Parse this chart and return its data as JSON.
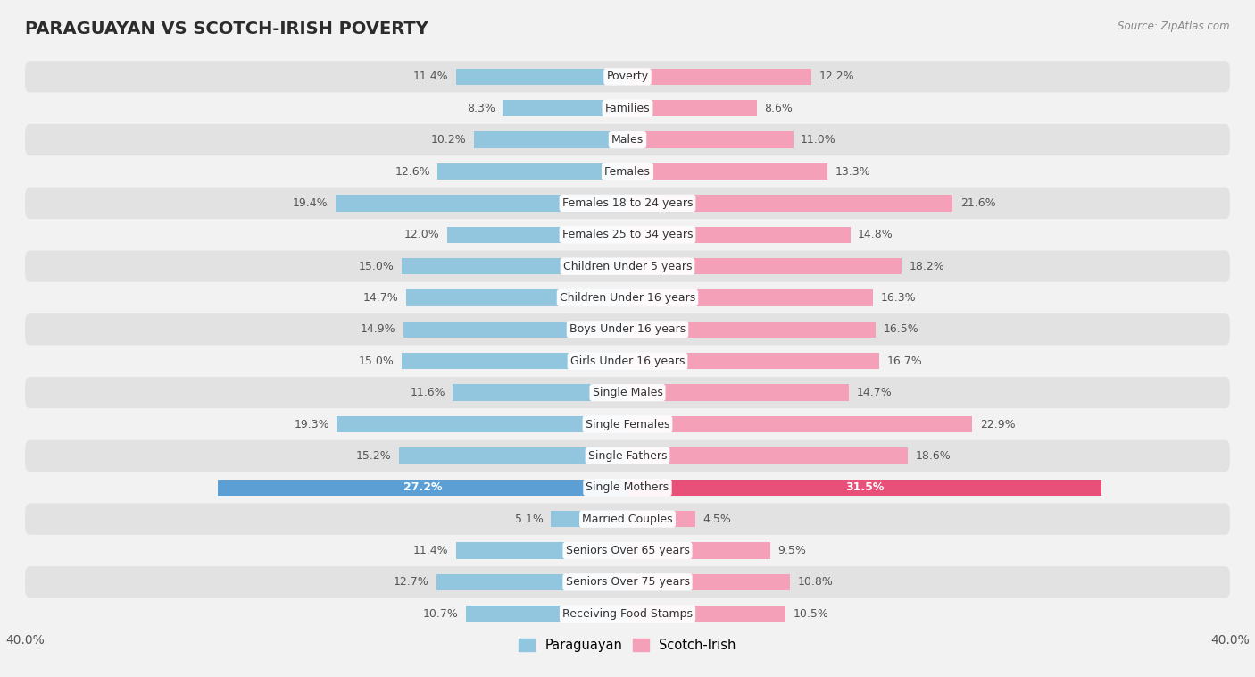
{
  "title": "PARAGUAYAN VS SCOTCH-IRISH POVERTY",
  "source": "Source: ZipAtlas.com",
  "categories": [
    "Poverty",
    "Families",
    "Males",
    "Females",
    "Females 18 to 24 years",
    "Females 25 to 34 years",
    "Children Under 5 years",
    "Children Under 16 years",
    "Boys Under 16 years",
    "Girls Under 16 years",
    "Single Males",
    "Single Females",
    "Single Fathers",
    "Single Mothers",
    "Married Couples",
    "Seniors Over 65 years",
    "Seniors Over 75 years",
    "Receiving Food Stamps"
  ],
  "paraguayan": [
    11.4,
    8.3,
    10.2,
    12.6,
    19.4,
    12.0,
    15.0,
    14.7,
    14.9,
    15.0,
    11.6,
    19.3,
    15.2,
    27.2,
    5.1,
    11.4,
    12.7,
    10.7
  ],
  "scotch_irish": [
    12.2,
    8.6,
    11.0,
    13.3,
    21.6,
    14.8,
    18.2,
    16.3,
    16.5,
    16.7,
    14.7,
    22.9,
    18.6,
    31.5,
    4.5,
    9.5,
    10.8,
    10.5
  ],
  "paraguayan_color": "#92c5de",
  "scotch_irish_color": "#f4a0b8",
  "highlight_paraguayan_color": "#5b9fd4",
  "highlight_scotch_irish_color": "#e8507a",
  "bar_height": 0.52,
  "xlim": 40.0,
  "bg_color": "#f2f2f2",
  "row_color_dark": "#e2e2e2",
  "row_color_light": "#f2f2f2",
  "legend_paraguayan": "Paraguayan",
  "legend_scotch_irish": "Scotch-Irish",
  "label_fontsize": 9,
  "cat_fontsize": 9,
  "title_fontsize": 14
}
